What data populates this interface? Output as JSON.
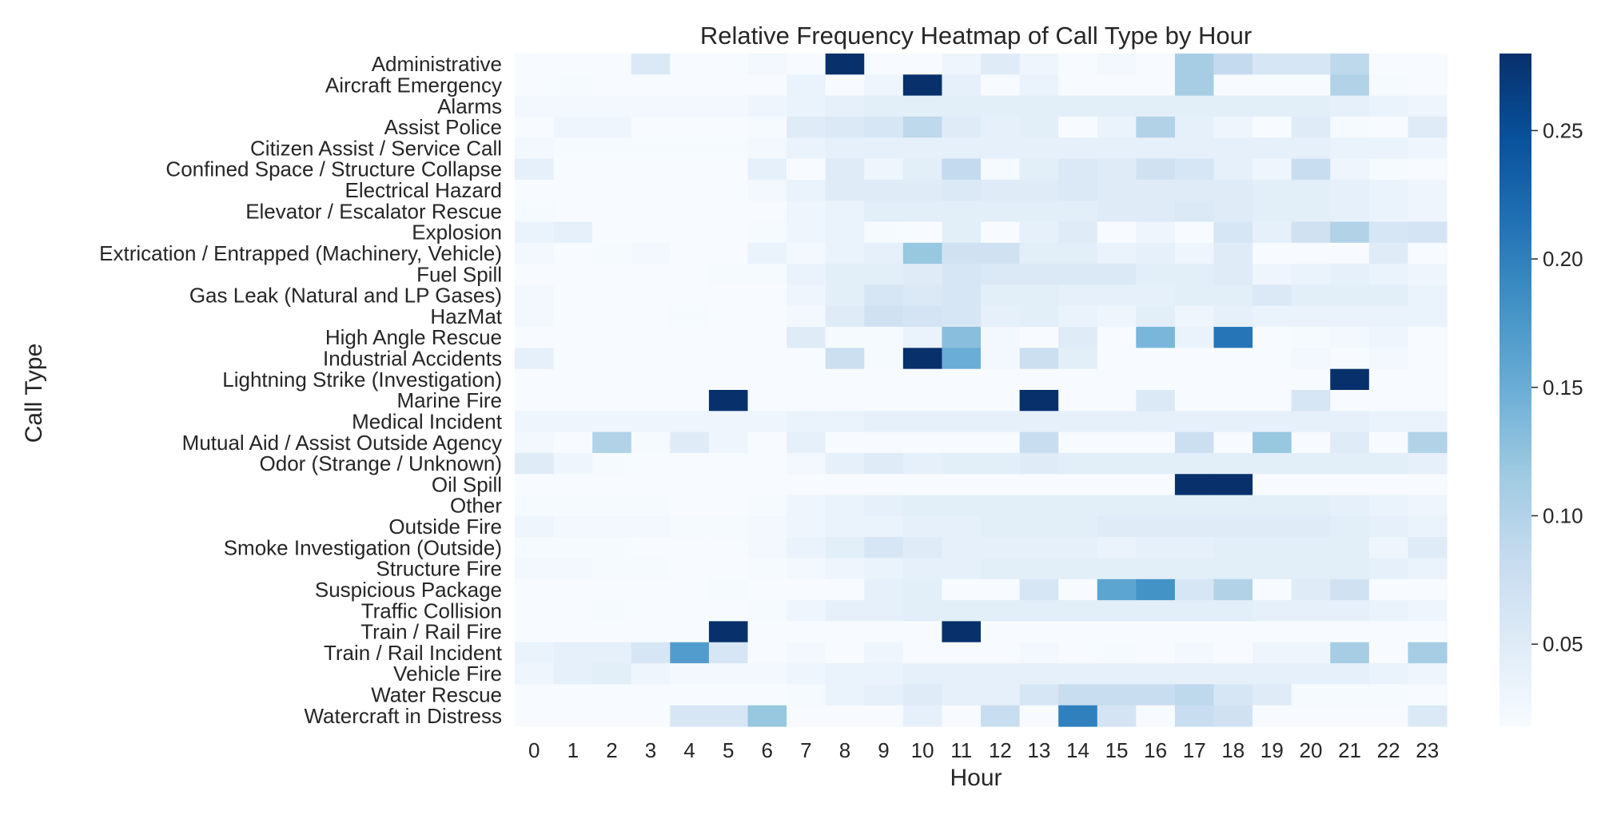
{
  "chart_data": {
    "type": "heatmap",
    "title": "Relative Frequency Heatmap of Call Type by Hour",
    "xlabel": "Hour",
    "ylabel": "Call Type",
    "colormap": "Blues",
    "colorbar": {
      "min": 0.018,
      "max": 0.28,
      "ticks": [
        0.05,
        0.1,
        0.15,
        0.2,
        0.25
      ],
      "tick_labels": [
        "0.05",
        "0.10",
        "0.15",
        "0.20",
        "0.25"
      ]
    },
    "x": [
      "0",
      "1",
      "2",
      "3",
      "4",
      "5",
      "6",
      "7",
      "8",
      "9",
      "10",
      "11",
      "12",
      "13",
      "14",
      "15",
      "16",
      "17",
      "18",
      "19",
      "20",
      "21",
      "22",
      "23"
    ],
    "y": [
      "Administrative",
      "Aircraft Emergency",
      "Alarms",
      "Assist Police",
      "Citizen Assist / Service Call",
      "Confined Space / Structure Collapse",
      "Electrical Hazard",
      "Elevator / Escalator Rescue",
      "Explosion",
      "Extrication / Entrapped (Machinery, Vehicle)",
      "Fuel Spill",
      "Gas Leak (Natural and LP Gases)",
      "HazMat",
      "High Angle Rescue",
      "Industrial Accidents",
      "Lightning Strike (Investigation)",
      "Marine Fire",
      "Medical Incident",
      "Mutual Aid / Assist Outside Agency",
      "Odor (Strange / Unknown)",
      "Oil Spill",
      "Other",
      "Outside Fire",
      "Smoke Investigation (Outside)",
      "Structure Fire",
      "Suspicious Package",
      "Traffic Collision",
      "Train / Rail Fire",
      "Train / Rail Incident",
      "Vehicle Fire",
      "Water Rescue",
      "Watercraft in Distress"
    ],
    "values": [
      [
        0.0,
        0.0,
        0.0,
        0.055,
        0.0,
        0.0,
        0.025,
        0.0,
        0.28,
        0.0,
        0.0,
        0.03,
        0.05,
        0.03,
        0.0,
        0.025,
        0.0,
        0.11,
        0.085,
        0.06,
        0.06,
        0.09,
        0.0,
        0.0
      ],
      [
        0.0,
        0.02,
        0.0,
        0.0,
        0.0,
        0.0,
        0.0,
        0.035,
        0.0,
        0.03,
        0.28,
        0.04,
        0.0,
        0.035,
        0.0,
        0.0,
        0.0,
        0.11,
        0.0,
        0.0,
        0.0,
        0.1,
        0.02,
        0.0
      ],
      [
        0.025,
        0.025,
        0.025,
        0.025,
        0.025,
        0.025,
        0.03,
        0.035,
        0.04,
        0.045,
        0.045,
        0.045,
        0.045,
        0.045,
        0.045,
        0.045,
        0.045,
        0.045,
        0.045,
        0.045,
        0.045,
        0.04,
        0.035,
        0.03
      ],
      [
        0.01,
        0.03,
        0.03,
        0.01,
        0.015,
        0.01,
        0.02,
        0.05,
        0.055,
        0.06,
        0.09,
        0.05,
        0.04,
        0.045,
        0.01,
        0.035,
        0.1,
        0.04,
        0.03,
        0.015,
        0.05,
        0.02,
        0.015,
        0.05
      ],
      [
        0.025,
        0.02,
        0.02,
        0.02,
        0.02,
        0.02,
        0.025,
        0.035,
        0.04,
        0.04,
        0.04,
        0.04,
        0.04,
        0.04,
        0.04,
        0.04,
        0.04,
        0.04,
        0.04,
        0.04,
        0.04,
        0.035,
        0.035,
        0.03
      ],
      [
        0.04,
        0.0,
        0.0,
        0.0,
        0.0,
        0.0,
        0.04,
        0.01,
        0.05,
        0.03,
        0.045,
        0.085,
        0.02,
        0.045,
        0.055,
        0.05,
        0.07,
        0.06,
        0.04,
        0.03,
        0.08,
        0.03,
        0.02,
        0.01
      ],
      [
        0.015,
        0.01,
        0.01,
        0.01,
        0.01,
        0.01,
        0.025,
        0.035,
        0.05,
        0.05,
        0.05,
        0.055,
        0.05,
        0.05,
        0.055,
        0.05,
        0.05,
        0.05,
        0.05,
        0.045,
        0.045,
        0.04,
        0.035,
        0.03
      ],
      [
        0.02,
        0.01,
        0.01,
        0.01,
        0.01,
        0.01,
        0.015,
        0.03,
        0.035,
        0.045,
        0.045,
        0.045,
        0.045,
        0.045,
        0.045,
        0.05,
        0.05,
        0.055,
        0.05,
        0.045,
        0.045,
        0.04,
        0.035,
        0.03
      ],
      [
        0.035,
        0.04,
        0.01,
        0.01,
        0.01,
        0.01,
        0.02,
        0.03,
        0.035,
        0.02,
        0.01,
        0.045,
        0.01,
        0.04,
        0.05,
        0.01,
        0.03,
        0.01,
        0.06,
        0.04,
        0.07,
        0.1,
        0.06,
        0.065
      ],
      [
        0.025,
        0.01,
        0.02,
        0.025,
        0.01,
        0.01,
        0.035,
        0.025,
        0.035,
        0.04,
        0.12,
        0.07,
        0.07,
        0.045,
        0.045,
        0.035,
        0.04,
        0.03,
        0.05,
        0.01,
        0.01,
        0.01,
        0.05,
        0.01
      ],
      [
        0.01,
        0.01,
        0.01,
        0.01,
        0.01,
        0.02,
        0.02,
        0.035,
        0.045,
        0.045,
        0.05,
        0.06,
        0.055,
        0.055,
        0.055,
        0.055,
        0.045,
        0.045,
        0.05,
        0.03,
        0.035,
        0.04,
        0.035,
        0.03
      ],
      [
        0.025,
        0.015,
        0.01,
        0.01,
        0.01,
        0.01,
        0.015,
        0.03,
        0.045,
        0.06,
        0.055,
        0.06,
        0.045,
        0.045,
        0.04,
        0.04,
        0.04,
        0.045,
        0.045,
        0.055,
        0.045,
        0.045,
        0.045,
        0.035
      ],
      [
        0.025,
        0.01,
        0.01,
        0.01,
        0.02,
        0.01,
        0.01,
        0.025,
        0.05,
        0.07,
        0.065,
        0.06,
        0.04,
        0.045,
        0.035,
        0.03,
        0.045,
        0.03,
        0.04,
        0.035,
        0.035,
        0.035,
        0.035,
        0.035
      ],
      [
        0.0,
        0.0,
        0.0,
        0.0,
        0.0,
        0.0,
        0.0,
        0.05,
        0.02,
        0.02,
        0.035,
        0.13,
        0.025,
        0.005,
        0.05,
        0.0,
        0.14,
        0.035,
        0.21,
        0.0,
        0.02,
        0.025,
        0.03,
        0.0
      ],
      [
        0.04,
        0.0,
        0.0,
        0.0,
        0.0,
        0.0,
        0.0,
        0.0,
        0.075,
        0.02,
        0.28,
        0.15,
        0.025,
        0.075,
        0.045,
        0.0,
        0.0,
        0.0,
        0.0,
        0.0,
        0.025,
        0.0,
        0.025,
        0.0
      ],
      [
        0.0,
        0.0,
        0.0,
        0.0,
        0.0,
        0.0,
        0.0,
        0.0,
        0.0,
        0.0,
        0.0,
        0.0,
        0.0,
        0.0,
        0.0,
        0.0,
        0.0,
        0.0,
        0.0,
        0.0,
        0.0,
        0.28,
        0.0,
        0.0
      ],
      [
        0.0,
        0.0,
        0.0,
        0.0,
        0.0,
        0.28,
        0.0,
        0.0,
        0.0,
        0.0,
        0.0,
        0.0,
        0.0,
        0.28,
        0.0,
        0.0,
        0.055,
        0.0,
        0.0,
        0.0,
        0.06,
        0.0,
        0.0,
        0.0
      ],
      [
        0.03,
        0.03,
        0.03,
        0.03,
        0.03,
        0.03,
        0.03,
        0.035,
        0.035,
        0.04,
        0.04,
        0.04,
        0.04,
        0.04,
        0.04,
        0.04,
        0.04,
        0.04,
        0.04,
        0.04,
        0.04,
        0.04,
        0.035,
        0.035
      ],
      [
        0.025,
        0.005,
        0.1,
        0.02,
        0.05,
        0.03,
        0.0,
        0.04,
        0.0,
        0.0,
        0.0,
        0.0,
        0.0,
        0.08,
        0.0,
        0.0,
        0.0,
        0.075,
        0.005,
        0.12,
        0.005,
        0.05,
        0.005,
        0.1
      ],
      [
        0.05,
        0.03,
        0.02,
        0.015,
        0.01,
        0.01,
        0.015,
        0.025,
        0.04,
        0.05,
        0.04,
        0.045,
        0.045,
        0.05,
        0.045,
        0.045,
        0.045,
        0.045,
        0.045,
        0.045,
        0.045,
        0.045,
        0.045,
        0.04
      ],
      [
        0.0,
        0.0,
        0.0,
        0.0,
        0.0,
        0.0,
        0.0,
        0.0,
        0.0,
        0.0,
        0.0,
        0.0,
        0.0,
        0.0,
        0.0,
        0.0,
        0.0,
        0.28,
        0.28,
        0.0,
        0.0,
        0.0,
        0.0,
        0.0
      ],
      [
        0.02,
        0.02,
        0.02,
        0.02,
        0.015,
        0.015,
        0.02,
        0.03,
        0.035,
        0.04,
        0.045,
        0.045,
        0.045,
        0.045,
        0.045,
        0.045,
        0.045,
        0.045,
        0.045,
        0.045,
        0.045,
        0.04,
        0.035,
        0.03
      ],
      [
        0.03,
        0.025,
        0.025,
        0.025,
        0.02,
        0.02,
        0.025,
        0.03,
        0.035,
        0.035,
        0.04,
        0.04,
        0.045,
        0.045,
        0.045,
        0.05,
        0.05,
        0.05,
        0.05,
        0.05,
        0.05,
        0.045,
        0.04,
        0.035
      ],
      [
        0.02,
        0.02,
        0.02,
        0.01,
        0.01,
        0.01,
        0.025,
        0.035,
        0.045,
        0.06,
        0.05,
        0.04,
        0.04,
        0.04,
        0.04,
        0.035,
        0.04,
        0.04,
        0.045,
        0.045,
        0.045,
        0.045,
        0.03,
        0.05
      ],
      [
        0.025,
        0.025,
        0.02,
        0.02,
        0.015,
        0.015,
        0.02,
        0.025,
        0.03,
        0.035,
        0.04,
        0.04,
        0.045,
        0.045,
        0.045,
        0.045,
        0.045,
        0.045,
        0.045,
        0.045,
        0.045,
        0.045,
        0.04,
        0.035
      ],
      [
        0.0,
        0.0,
        0.0,
        0.0,
        0.0,
        0.02,
        0.0,
        0.0,
        0.0,
        0.04,
        0.045,
        0.0,
        0.0,
        0.06,
        0.0,
        0.16,
        0.18,
        0.06,
        0.1,
        0.0,
        0.05,
        0.07,
        0.0,
        0.0
      ],
      [
        0.015,
        0.015,
        0.02,
        0.015,
        0.015,
        0.015,
        0.02,
        0.03,
        0.04,
        0.04,
        0.045,
        0.045,
        0.045,
        0.045,
        0.045,
        0.045,
        0.045,
        0.045,
        0.045,
        0.04,
        0.04,
        0.04,
        0.035,
        0.03
      ],
      [
        0.0,
        0.0,
        0.0,
        0.0,
        0.0,
        0.28,
        0.0,
        0.0,
        0.0,
        0.0,
        0.0,
        0.28,
        0.0,
        0.0,
        0.0,
        0.0,
        0.0,
        0.0,
        0.0,
        0.0,
        0.0,
        0.0,
        0.0,
        0.0
      ],
      [
        0.035,
        0.04,
        0.04,
        0.06,
        0.17,
        0.06,
        0.01,
        0.025,
        0.005,
        0.03,
        0.005,
        0.005,
        0.005,
        0.025,
        0.005,
        0.02,
        0.005,
        0.025,
        0.005,
        0.03,
        0.03,
        0.11,
        0.005,
        0.11
      ],
      [
        0.03,
        0.04,
        0.045,
        0.03,
        0.025,
        0.025,
        0.025,
        0.03,
        0.035,
        0.035,
        0.04,
        0.04,
        0.04,
        0.04,
        0.04,
        0.04,
        0.04,
        0.04,
        0.04,
        0.04,
        0.04,
        0.04,
        0.035,
        0.03
      ],
      [
        0.0,
        0.0,
        0.0,
        0.0,
        0.0,
        0.0,
        0.0,
        0.02,
        0.035,
        0.04,
        0.05,
        0.04,
        0.04,
        0.06,
        0.08,
        0.08,
        0.08,
        0.09,
        0.06,
        0.05,
        0.02,
        0.02,
        0.02,
        0.0
      ],
      [
        0.0,
        0.0,
        0.0,
        0.0,
        0.06,
        0.06,
        0.12,
        0.0,
        0.0,
        0.0,
        0.04,
        0.0,
        0.08,
        0.0,
        0.2,
        0.065,
        0.0,
        0.08,
        0.07,
        0.0,
        0.0,
        0.0,
        0.0,
        0.055
      ]
    ]
  }
}
